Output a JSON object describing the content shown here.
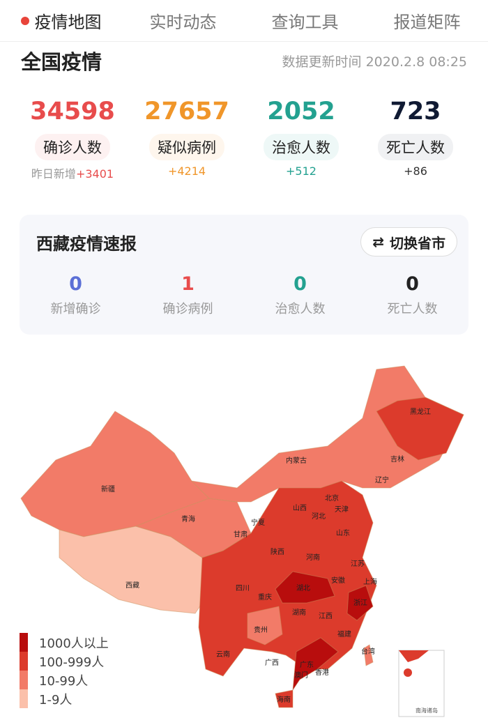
{
  "tabs": [
    {
      "label": "疫情地图",
      "active": true
    },
    {
      "label": "实时动态"
    },
    {
      "label": "查询工具"
    },
    {
      "label": "报道矩阵"
    }
  ],
  "national": {
    "title": "全国疫情",
    "updated": "数据更新时间 2020.2.8 08:25",
    "stats": [
      {
        "value": "34598",
        "label": "确诊人数",
        "prefix": "昨日新增",
        "delta": "+3401",
        "color": "#e84c4c",
        "bg": "#fdf1f1"
      },
      {
        "value": "27657",
        "label": "疑似病例",
        "prefix": "",
        "delta": "+4214",
        "color": "#f0962a",
        "bg": "#fef6ed"
      },
      {
        "value": "2052",
        "label": "治愈人数",
        "prefix": "",
        "delta": "+512",
        "color": "#23a190",
        "bg": "#eef8f7"
      },
      {
        "value": "723",
        "label": "死亡人数",
        "prefix": "",
        "delta": "+86",
        "color": "#101a33",
        "bg": "#f0f1f3"
      }
    ]
  },
  "province": {
    "title": "西藏疫情速报",
    "switch_label": "切换省市",
    "switch_icon": "swap-arrows-icon",
    "stats": [
      {
        "value": "0",
        "label": "新增确诊",
        "color": "#5b6fd6"
      },
      {
        "value": "1",
        "label": "确诊病例",
        "color": "#e84c4c"
      },
      {
        "value": "0",
        "label": "治愈人数",
        "color": "#23a190"
      },
      {
        "value": "0",
        "label": "死亡人数",
        "color": "#222"
      }
    ]
  },
  "map": {
    "legend": [
      {
        "label": "1000人以上",
        "color": "#b80d0d"
      },
      {
        "label": "100-999人",
        "color": "#dc3b2c"
      },
      {
        "label": "10-99人",
        "color": "#f27b68"
      },
      {
        "label": "1-9人",
        "color": "#fbc0aa"
      }
    ],
    "provinces": [
      "黑龙江",
      "吉林",
      "辽宁",
      "内蒙古",
      "北京",
      "天津",
      "河北",
      "山西",
      "山东",
      "宁夏",
      "甘肃",
      "青海",
      "新疆",
      "西藏",
      "陕西",
      "河南",
      "江苏",
      "安徽",
      "上海",
      "湖北",
      "浙江",
      "四川",
      "重庆",
      "贵州",
      "湖南",
      "江西",
      "福建",
      "云南",
      "广西",
      "广东",
      "台湾",
      "澳门",
      "香港",
      "海南"
    ],
    "inset_label": "南海诸岛"
  }
}
